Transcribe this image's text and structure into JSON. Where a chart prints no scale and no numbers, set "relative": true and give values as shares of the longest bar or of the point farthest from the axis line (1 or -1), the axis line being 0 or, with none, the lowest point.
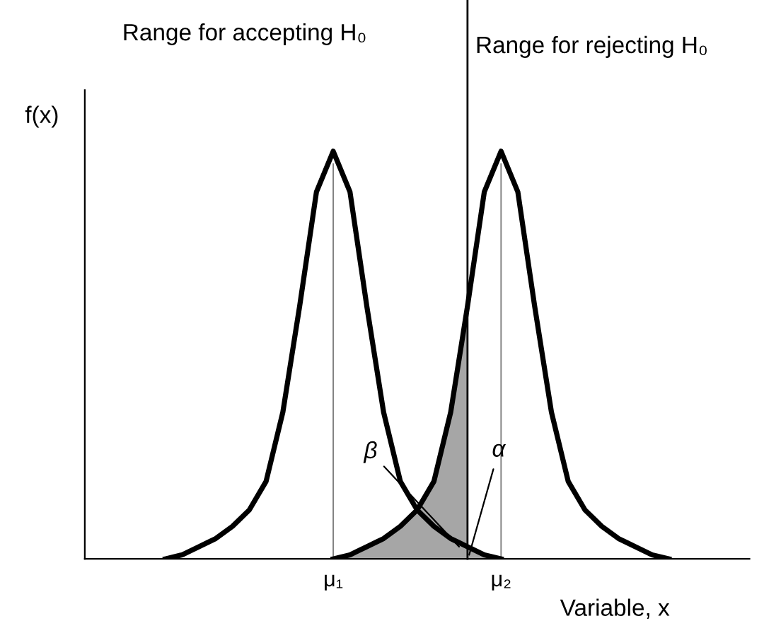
{
  "chart_data": {
    "type": "line",
    "relative": true,
    "ylabel": "f(x)",
    "xlabel": "Variable, x",
    "tick_labels": "x",
    "marker": "none",
    "line_style": "solid",
    "categories": [
      null,
      null,
      null,
      null,
      null,
      null,
      null,
      null,
      null,
      null,
      null,
      null,
      null,
      null,
      "μ₁",
      null,
      null,
      null,
      null,
      null,
      null,
      null,
      null,
      null,
      "μ₂",
      null,
      null,
      null,
      null,
      null,
      null,
      null,
      null,
      null,
      null,
      null,
      null,
      null,
      null
    ],
    "annotations": [
      "Range for accepting H₀",
      "Range for rejecting H₀",
      "β",
      "α"
    ],
    "series": [
      {
        "type": "area",
        "color": "#a6a6a6",
        "values": [
          null,
          null,
          null,
          null,
          null,
          null,
          null,
          null,
          null,
          null,
          null,
          null,
          null,
          null,
          0,
          0.01,
          0.03,
          0.05,
          0.08,
          0.12,
          0.19,
          0.36,
          0.62,
          null,
          null,
          null,
          null,
          null,
          null,
          null,
          null,
          null,
          null,
          null,
          null,
          null,
          null,
          null,
          null
        ]
      },
      {
        "type": "area",
        "color": "#a6a6a6",
        "values": [
          null,
          null,
          null,
          null,
          null,
          null,
          null,
          null,
          null,
          null,
          null,
          null,
          null,
          null,
          null,
          null,
          null,
          null,
          null,
          null,
          null,
          null,
          0.03,
          0.01,
          0,
          null,
          null,
          null,
          null,
          null,
          null,
          null,
          null,
          null,
          null,
          null,
          null,
          null,
          null
        ]
      },
      {
        "type": "bar",
        "color": "#808080",
        "values": [
          null,
          null,
          null,
          null,
          null,
          null,
          null,
          null,
          null,
          null,
          null,
          null,
          null,
          null,
          0.97,
          null,
          null,
          null,
          null,
          null,
          null,
          null,
          null,
          null,
          0.97,
          null,
          null,
          null,
          null,
          null,
          null,
          null,
          null,
          null,
          null,
          null,
          null,
          null,
          null
        ]
      },
      {
        "color": "#000000",
        "values": [
          null,
          null,
          null,
          null,
          0,
          0.01,
          0.03,
          0.05,
          0.08,
          0.12,
          0.19,
          0.36,
          0.62,
          0.9,
          1,
          0.9,
          0.62,
          0.36,
          0.19,
          0.12,
          0.08,
          0.05,
          0.03,
          0.01,
          0,
          null,
          null,
          null,
          null,
          null,
          null,
          null,
          null,
          null,
          null,
          null,
          null,
          null,
          null
        ]
      },
      {
        "color": "#000000",
        "values": [
          null,
          null,
          null,
          null,
          null,
          null,
          null,
          null,
          null,
          null,
          null,
          null,
          null,
          null,
          0,
          0.01,
          0.03,
          0.05,
          0.08,
          0.12,
          0.19,
          0.36,
          0.62,
          0.9,
          1,
          0.9,
          0.62,
          0.36,
          0.19,
          0.12,
          0.08,
          0.05,
          0.03,
          0.01,
          0,
          null,
          null,
          null,
          null
        ]
      }
    ]
  }
}
